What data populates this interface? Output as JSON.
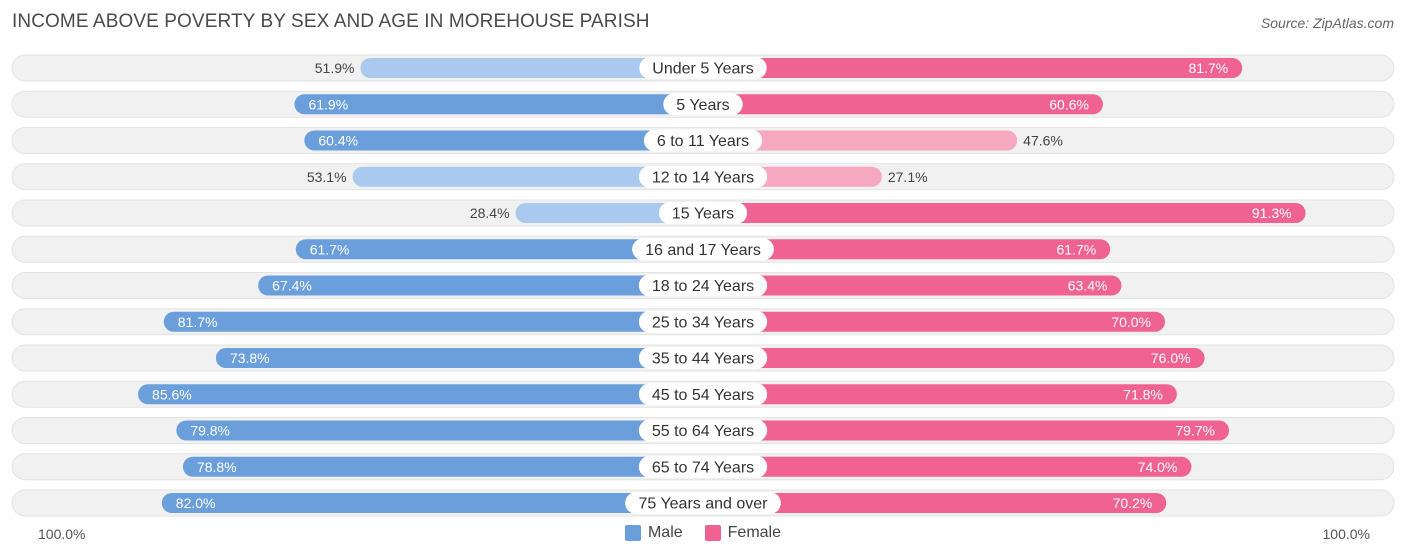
{
  "title": "INCOME ABOVE POVERTY BY SEX AND AGE IN MOREHOUSE PARISH",
  "source": "Source: ZipAtlas.com",
  "colors": {
    "male_strong": "#6a9fdc",
    "male_light": "#a9c9ee",
    "female_strong": "#f06292",
    "female_light": "#f7a8c1",
    "track": "#f1f1f1"
  },
  "chart_data": {
    "type": "bar",
    "orientation": "diverging-horizontal",
    "title": "INCOME ABOVE POVERTY BY SEX AND AGE IN MOREHOUSE PARISH",
    "categories": [
      "Under 5 Years",
      "5 Years",
      "6 to 11 Years",
      "12 to 14 Years",
      "15 Years",
      "16 and 17 Years",
      "18 to 24 Years",
      "25 to 34 Years",
      "35 to 44 Years",
      "45 to 54 Years",
      "55 to 64 Years",
      "65 to 74 Years",
      "75 Years and over"
    ],
    "series": [
      {
        "name": "Male",
        "values": [
          51.9,
          61.9,
          60.4,
          53.1,
          28.4,
          61.7,
          67.4,
          81.7,
          73.8,
          85.6,
          79.8,
          78.8,
          82.0
        ],
        "labels": [
          "51.9%",
          "61.9%",
          "60.4%",
          "53.1%",
          "28.4%",
          "61.7%",
          "67.4%",
          "81.7%",
          "73.8%",
          "85.6%",
          "79.8%",
          "78.8%",
          "82.0%"
        ]
      },
      {
        "name": "Female",
        "values": [
          81.7,
          60.6,
          47.6,
          27.1,
          91.3,
          61.7,
          63.4,
          70.0,
          76.0,
          71.8,
          79.7,
          74.0,
          70.2
        ],
        "labels": [
          "81.7%",
          "60.6%",
          "47.6%",
          "27.1%",
          "91.3%",
          "61.7%",
          "63.4%",
          "70.0%",
          "76.0%",
          "71.8%",
          "79.7%",
          "74.0%",
          "70.2%"
        ]
      }
    ],
    "xlim": [
      0,
      100
    ],
    "axis_left_label": "100.0%",
    "axis_right_label": "100.0%",
    "legend": [
      "Male",
      "Female"
    ],
    "legend_position": "bottom-center"
  }
}
